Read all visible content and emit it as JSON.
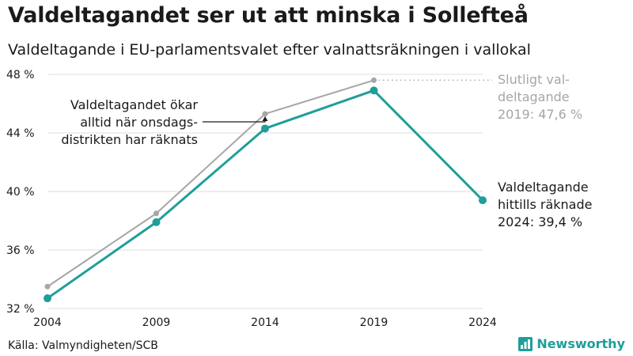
{
  "title": "Valdeltagandet ser ut att minska i Sollefteå",
  "subtitle": "Valdeltagande i EU-parlamentsvalet efter valnattsräkningen i vallokal",
  "source": "Källa: Valmyndigheten/SCB",
  "brand": "Newsworthy",
  "colors": {
    "final": "#a6a6a6",
    "preliminary": "#1f9e99",
    "text": "#1a1a1a",
    "muted": "#a6a6a6",
    "grid": "#dedede"
  },
  "chart_data": {
    "type": "line",
    "x": [
      "2004",
      "2009",
      "2014",
      "2019",
      "2024"
    ],
    "ylim": [
      32,
      48
    ],
    "yticks": [
      32,
      36,
      40,
      44,
      48
    ],
    "ytick_labels": [
      "32 %",
      "36 %",
      "40 %",
      "44 %",
      "48 %"
    ],
    "grid": true,
    "series": [
      {
        "key": "final",
        "values": [
          33.5,
          38.5,
          45.3,
          47.6,
          null
        ]
      },
      {
        "key": "preliminary",
        "values": [
          32.7,
          37.9,
          44.3,
          46.9,
          39.4
        ]
      }
    ],
    "annotations": {
      "left": [
        "Valdeltagandet ökar",
        "alltid när onsdags-",
        "distrikten har räknats"
      ],
      "final_label": [
        "Slutligt val-",
        "deltagande",
        "2019: 47,6 %"
      ],
      "preliminary_label": [
        "Valdeltagande",
        "hittills räknade",
        "2024: 39,4 %"
      ]
    }
  }
}
